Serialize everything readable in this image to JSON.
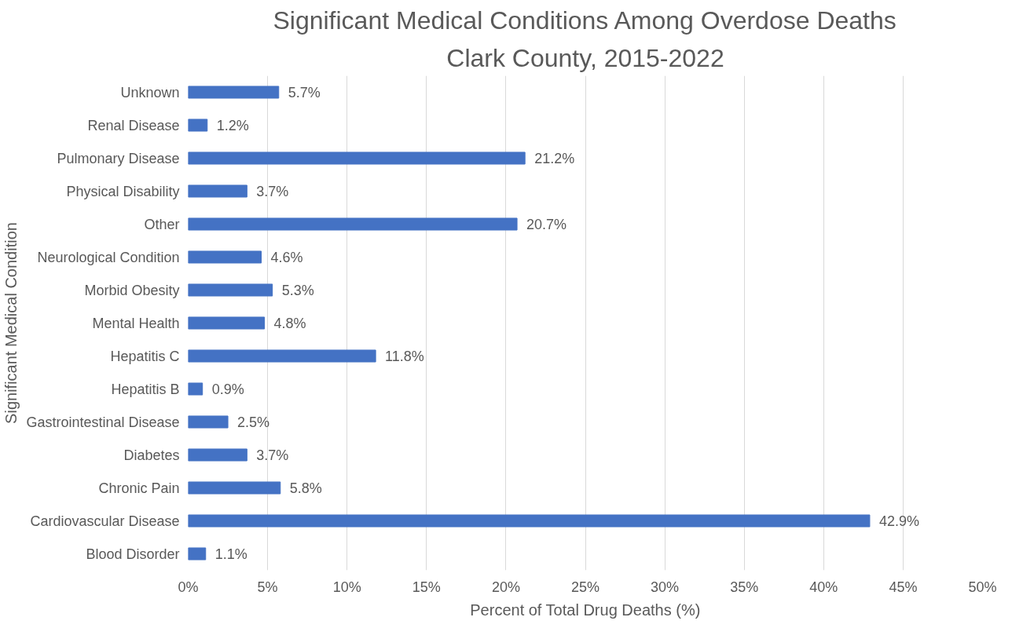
{
  "chart_data": {
    "type": "bar",
    "orientation": "horizontal",
    "title": "Significant Medical Conditions Among Overdose Deaths",
    "subtitle": "Clark County, 2015-2022",
    "xlabel": "Percent of Total Drug Deaths (%)",
    "ylabel": "Significant Medical Condition",
    "categories": [
      "Unknown",
      "Renal Disease",
      "Pulmonary Disease",
      "Physical Disability",
      "Other",
      "Neurological Condition",
      "Morbid Obesity",
      "Mental Health",
      "Hepatitis C",
      "Hepatitis B",
      "Gastrointestinal Disease",
      "Diabetes",
      "Chronic Pain",
      "Cardiovascular Disease",
      "Blood Disorder"
    ],
    "values": [
      5.7,
      1.2,
      21.2,
      3.7,
      20.7,
      4.6,
      5.3,
      4.8,
      11.8,
      0.9,
      2.5,
      3.7,
      5.8,
      42.9,
      1.1
    ],
    "value_labels": [
      "5.7%",
      "1.2%",
      "21.2%",
      "3.7%",
      "20.7%",
      "4.6%",
      "5.3%",
      "4.8%",
      "11.8%",
      "0.9%",
      "2.5%",
      "3.7%",
      "5.8%",
      "42.9%",
      "1.1%"
    ],
    "color": "#4472c4",
    "xlim": [
      0,
      50
    ],
    "xticks": [
      {
        "value": 0,
        "label": "0%"
      },
      {
        "value": 5,
        "label": "5%"
      },
      {
        "value": 10,
        "label": "10%"
      },
      {
        "value": 15,
        "label": "15%"
      },
      {
        "value": 20,
        "label": "20%"
      },
      {
        "value": 25,
        "label": "25%"
      },
      {
        "value": 30,
        "label": "30%"
      },
      {
        "value": 35,
        "label": "35%"
      },
      {
        "value": 40,
        "label": "40%"
      },
      {
        "value": 45,
        "label": "45%"
      },
      {
        "value": 50,
        "label": "50%"
      }
    ],
    "grid": "x"
  }
}
